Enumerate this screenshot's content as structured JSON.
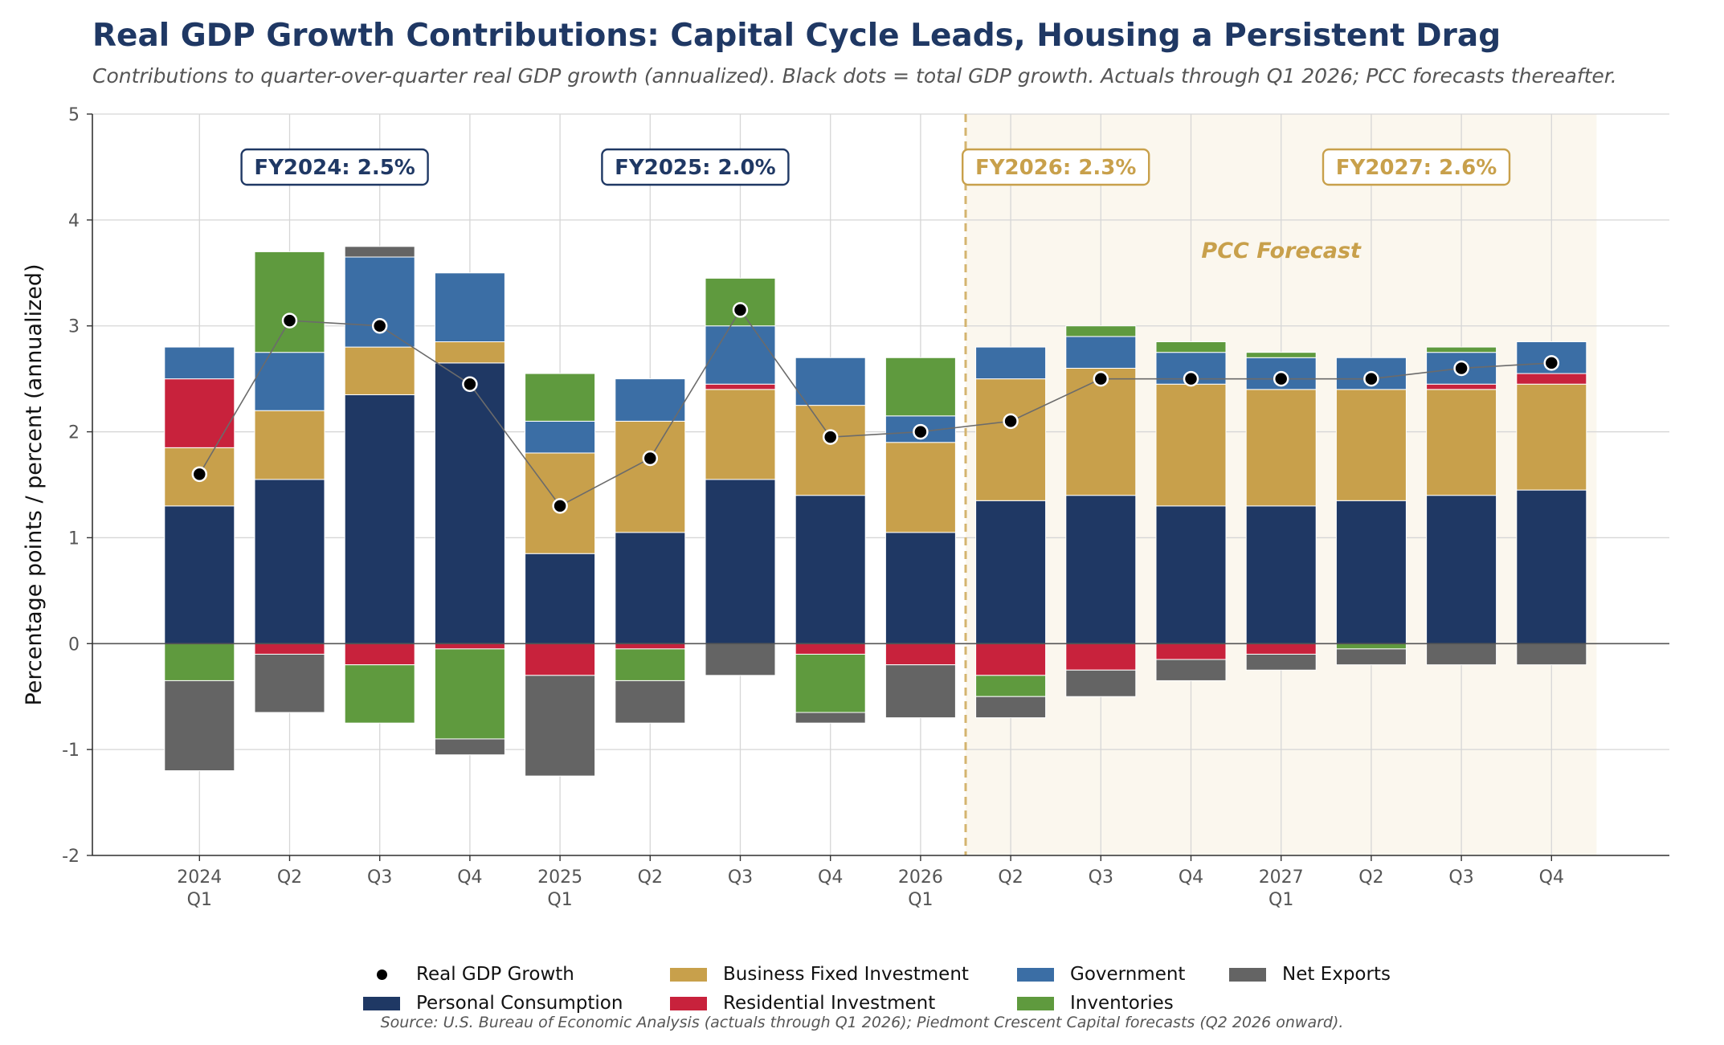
{
  "title": "Real GDP Growth Contributions: Capital Cycle Leads, Housing a Persistent Drag",
  "subtitle": "Contributions to quarter-over-quarter real GDP growth (annualized). Black dots = total GDP growth. Actuals through Q1 2026; PCC forecasts thereafter.",
  "source": "Source: U.S. Bureau of Economic Analysis (actuals through Q1 2026); Piedmont Crescent Capital forecasts (Q2 2026 onward).",
  "forecast_label": "PCC Forecast",
  "colors": {
    "navy": "#1f3864",
    "gold": "#c8a04b",
    "forecast_bg": "#fbf7ee",
    "forecast_line": "#d4b46f"
  },
  "fy_labels": [
    {
      "text": "FY2024: 2.5%",
      "style": "actual"
    },
    {
      "text": "FY2025: 2.0%",
      "style": "actual"
    },
    {
      "text": "FY2026: 2.3%",
      "style": "forecast"
    },
    {
      "text": "FY2027: 2.6%",
      "style": "forecast"
    }
  ],
  "chart_data": {
    "type": "bar",
    "stacked": true,
    "categories": [
      "2024\nQ1",
      "Q2",
      "Q3",
      "Q4",
      "2025\nQ1",
      "Q2",
      "Q3",
      "Q4",
      "2026\nQ1",
      "Q2",
      "Q3",
      "Q4",
      "2027\nQ1",
      "Q2",
      "Q3",
      "Q4"
    ],
    "ylabel": "Percentage points / percent (annualized)",
    "xlabel": "",
    "ylim": [
      -2,
      5
    ],
    "yticks": [
      -2,
      -1,
      0,
      1,
      2,
      3,
      4,
      5
    ],
    "grid": true,
    "forecast_start_index": 9,
    "series": [
      {
        "name": "Personal Consumption",
        "color": "#1f3864",
        "values": [
          1.3,
          1.55,
          2.35,
          2.65,
          0.85,
          1.05,
          1.55,
          1.4,
          1.05,
          1.35,
          1.4,
          1.3,
          1.3,
          1.35,
          1.4,
          1.45
        ]
      },
      {
        "name": "Business Fixed Investment",
        "color": "#c8a04b",
        "values": [
          0.55,
          0.65,
          0.45,
          0.2,
          0.95,
          1.05,
          0.85,
          0.85,
          0.85,
          1.15,
          1.2,
          1.15,
          1.1,
          1.05,
          1.0,
          1.0
        ]
      },
      {
        "name": "Residential Investment",
        "color": "#c8223c",
        "values": [
          0.65,
          -0.1,
          -0.2,
          -0.05,
          -0.3,
          -0.05,
          0.05,
          -0.1,
          -0.2,
          -0.3,
          -0.25,
          -0.15,
          -0.1,
          0.0,
          0.05,
          0.1
        ]
      },
      {
        "name": "Government",
        "color": "#3b6ea5",
        "values": [
          0.3,
          0.55,
          0.85,
          0.65,
          0.3,
          0.4,
          0.55,
          0.45,
          0.25,
          0.3,
          0.3,
          0.3,
          0.3,
          0.3,
          0.3,
          0.3
        ]
      },
      {
        "name": "Inventories",
        "color": "#5f9a3e",
        "values": [
          -0.35,
          0.95,
          -0.55,
          -0.85,
          0.45,
          -0.3,
          0.45,
          -0.55,
          0.55,
          -0.2,
          0.1,
          0.1,
          0.05,
          -0.05,
          0.05,
          0.0
        ]
      },
      {
        "name": "Net Exports",
        "color": "#646464",
        "values": [
          -0.85,
          -0.55,
          0.1,
          -0.15,
          -0.95,
          -0.4,
          -0.3,
          -0.1,
          -0.5,
          -0.2,
          -0.25,
          -0.2,
          -0.15,
          -0.15,
          -0.2,
          -0.2
        ]
      }
    ],
    "line": {
      "name": "Real GDP Growth",
      "color": "#000000",
      "values": [
        1.6,
        3.05,
        3.0,
        2.45,
        1.3,
        1.75,
        3.15,
        1.95,
        2.0,
        2.1,
        2.5,
        2.5,
        2.5,
        2.5,
        2.6,
        2.65
      ]
    }
  }
}
